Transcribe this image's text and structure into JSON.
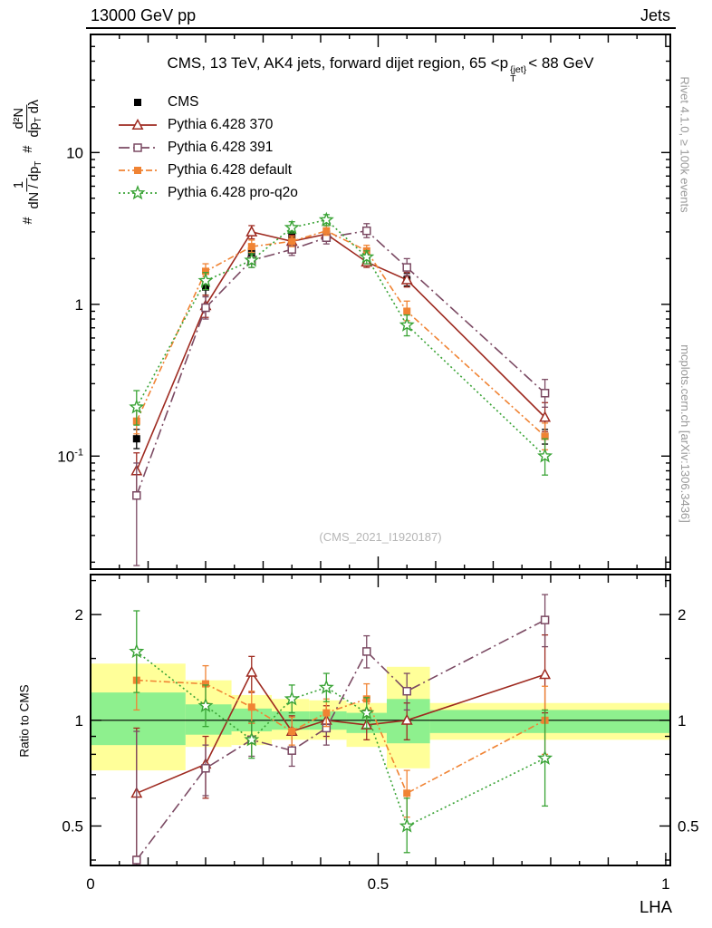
{
  "header": {
    "left": "13000 GeV pp",
    "right": "Jets"
  },
  "title": {
    "part1": "CMS, 13 TeV, AK4 jets, forward dijet region, 65 <p",
    "sup": "{jet}",
    "sub": "T",
    "part2": "< 88 GeV"
  },
  "watermark": "(CMS_2021_I1920187)",
  "side": {
    "right_top": "Rivet 4.1.0, ≥ 100k events",
    "right_bottom": "mcplots.cern.ch [arXiv:1306.3436]"
  },
  "ylabel": {
    "hash1": "#",
    "f1_num": "1",
    "f1_den_main": "dN / dp",
    "f1_den_sub": "T",
    "hash2": "#",
    "f2_num": "d²N",
    "f2_den_a": "dp",
    "f2_den_a_sub": "T",
    "f2_den_b": " dλ"
  },
  "chart_data": {
    "type": "line",
    "xlabel": "LHA",
    "xlim": [
      0,
      1.008
    ],
    "x_ticks": [
      {
        "v": 0,
        "label": "0"
      },
      {
        "v": 0.5,
        "label": "0.5"
      },
      {
        "v": 1,
        "label": "1"
      }
    ],
    "main": {
      "yscale": "log",
      "ylim": [
        0.018,
        60
      ],
      "yticks": [
        {
          "v": 10,
          "base": "10",
          "exp": ""
        },
        {
          "v": 1,
          "base": "1",
          "exp": ""
        },
        {
          "v": 0.1,
          "base": "10",
          "exp": "-1"
        }
      ],
      "series": [
        {
          "name": "cms",
          "label": "CMS",
          "color": "#000000",
          "marker": "square-filled",
          "line": "none",
          "points": [
            [
              0.08,
              0.13,
              0.112,
              0.15
            ],
            [
              0.2,
              1.3,
              1.15,
              1.47
            ],
            [
              0.28,
              2.2,
              2.0,
              2.42
            ],
            [
              0.35,
              2.8,
              2.6,
              3.0
            ],
            [
              0.41,
              2.9,
              2.7,
              3.1
            ],
            [
              0.48,
              1.95,
              1.82,
              2.1
            ],
            [
              0.55,
              1.45,
              1.32,
              1.6
            ],
            [
              0.79,
              0.135,
              0.12,
              0.15
            ]
          ]
        },
        {
          "name": "pythia-370",
          "label": "Pythia 6.428 370",
          "color": "#9e2a20",
          "marker": "triangle-open",
          "line": "solid",
          "points": [
            [
              0.08,
              0.08,
              0.055,
              0.105
            ],
            [
              0.2,
              0.98,
              0.82,
              1.15
            ],
            [
              0.28,
              3.0,
              2.7,
              3.3
            ],
            [
              0.35,
              2.6,
              2.4,
              2.85
            ],
            [
              0.41,
              2.9,
              2.65,
              3.15
            ],
            [
              0.48,
              1.9,
              1.75,
              2.1
            ],
            [
              0.55,
              1.45,
              1.3,
              1.62
            ],
            [
              0.79,
              0.18,
              0.145,
              0.225
            ]
          ]
        },
        {
          "name": "pythia-391",
          "label": "Pythia 6.428 391",
          "color": "#7b4a63",
          "marker": "square-open",
          "line": "dashdot-long",
          "points": [
            [
              0.08,
              0.055,
              0.019,
              0.09
            ],
            [
              0.2,
              0.95,
              0.8,
              1.12
            ],
            [
              0.28,
              1.95,
              1.75,
              2.2
            ],
            [
              0.35,
              2.3,
              2.1,
              2.55
            ],
            [
              0.41,
              2.75,
              2.5,
              3.0
            ],
            [
              0.48,
              3.05,
              2.75,
              3.4
            ],
            [
              0.55,
              1.75,
              1.55,
              2.0
            ],
            [
              0.79,
              0.26,
              0.21,
              0.32
            ]
          ]
        },
        {
          "name": "pythia-default",
          "label": "Pythia 6.428 default",
          "color": "#f08333",
          "marker": "square-filled",
          "line": "dashdot",
          "points": [
            [
              0.08,
              0.17,
              0.14,
              0.2
            ],
            [
              0.2,
              1.65,
              1.45,
              1.85
            ],
            [
              0.28,
              2.4,
              2.2,
              2.65
            ],
            [
              0.35,
              2.6,
              2.4,
              2.8
            ],
            [
              0.41,
              3.05,
              2.85,
              3.3
            ],
            [
              0.48,
              2.25,
              2.05,
              2.45
            ],
            [
              0.55,
              0.9,
              0.78,
              1.05
            ],
            [
              0.79,
              0.135,
              0.11,
              0.165
            ]
          ]
        },
        {
          "name": "pythia-pro-q2o",
          "label": "Pythia 6.428 pro-q2o",
          "color": "#39a335",
          "marker": "star-open",
          "line": "dotted",
          "points": [
            [
              0.08,
              0.21,
              0.16,
              0.27
            ],
            [
              0.2,
              1.43,
              1.25,
              1.62
            ],
            [
              0.28,
              1.95,
              1.75,
              2.15
            ],
            [
              0.35,
              3.2,
              2.95,
              3.5
            ],
            [
              0.41,
              3.6,
              3.3,
              3.9
            ],
            [
              0.48,
              2.05,
              1.85,
              2.25
            ],
            [
              0.55,
              0.73,
              0.62,
              0.85
            ],
            [
              0.79,
              0.1,
              0.075,
              0.13
            ]
          ]
        }
      ]
    },
    "ratio": {
      "ylabel": "Ratio to CMS",
      "yscale": "log",
      "ylim": [
        0.386,
        2.6
      ],
      "yticks": [
        {
          "v": 2,
          "label": "2"
        },
        {
          "v": 1,
          "label": "1"
        },
        {
          "v": 0.5,
          "label": "0.5"
        }
      ],
      "minor_ticks": [
        0.4,
        0.6,
        0.7,
        0.8,
        0.9,
        1.5,
        2.5
      ],
      "bands": {
        "yellow_color": "#ffff99",
        "green_color": "#8ef08e",
        "edges": [
          0,
          0.165,
          0.245,
          0.315,
          0.38,
          0.445,
          0.515,
          0.59,
          1.008
        ],
        "yellow": [
          [
            0.72,
            1.45
          ],
          [
            0.84,
            1.3
          ],
          [
            0.85,
            1.18
          ],
          [
            0.88,
            1.15
          ],
          [
            0.88,
            1.14
          ],
          [
            0.84,
            1.12
          ],
          [
            0.73,
            1.42
          ],
          [
            0.88,
            1.12
          ]
        ],
        "green": [
          [
            0.85,
            1.2
          ],
          [
            0.91,
            1.11
          ],
          [
            0.93,
            1.08
          ],
          [
            0.94,
            1.06
          ],
          [
            0.94,
            1.06
          ],
          [
            0.92,
            1.05
          ],
          [
            0.86,
            1.15
          ],
          [
            0.92,
            1.07
          ]
        ]
      },
      "series": [
        {
          "name": "pythia-370",
          "color": "#9e2a20",
          "marker": "triangle-open",
          "line": "solid",
          "points": [
            [
              0.08,
              0.62,
              0.41,
              0.95
            ],
            [
              0.2,
              0.75,
              0.6,
              0.9
            ],
            [
              0.28,
              1.37,
              1.2,
              1.52
            ],
            [
              0.35,
              0.93,
              0.84,
              1.03
            ],
            [
              0.41,
              1.0,
              0.9,
              1.1
            ],
            [
              0.48,
              0.97,
              0.88,
              1.07
            ],
            [
              0.55,
              1.0,
              0.88,
              1.12
            ],
            [
              0.79,
              1.35,
              1.05,
              1.75
            ]
          ]
        },
        {
          "name": "pythia-391",
          "color": "#7b4a63",
          "marker": "square-open",
          "line": "dashdot-long",
          "points": [
            [
              0.08,
              0.4,
              0.387,
              0.93
            ],
            [
              0.2,
              0.73,
              0.61,
              0.85
            ],
            [
              0.28,
              0.88,
              0.79,
              0.98
            ],
            [
              0.35,
              0.82,
              0.74,
              0.91
            ],
            [
              0.41,
              0.95,
              0.85,
              1.05
            ],
            [
              0.48,
              1.57,
              1.41,
              1.74
            ],
            [
              0.55,
              1.21,
              1.07,
              1.36
            ],
            [
              0.79,
              1.93,
              1.62,
              2.28
            ]
          ]
        },
        {
          "name": "pythia-default",
          "color": "#f08333",
          "marker": "square-filled",
          "line": "dashdot",
          "points": [
            [
              0.08,
              1.3,
              1.07,
              1.57
            ],
            [
              0.2,
              1.27,
              1.12,
              1.43
            ],
            [
              0.28,
              1.09,
              0.98,
              1.21
            ],
            [
              0.35,
              0.93,
              0.85,
              1.02
            ],
            [
              0.41,
              1.05,
              0.96,
              1.15
            ],
            [
              0.48,
              1.15,
              1.04,
              1.27
            ],
            [
              0.55,
              0.62,
              0.53,
              0.72
            ],
            [
              0.79,
              1.0,
              0.8,
              1.25
            ]
          ]
        },
        {
          "name": "pythia-pro-q2o",
          "color": "#39a335",
          "marker": "star-open",
          "line": "dotted",
          "points": [
            [
              0.08,
              1.57,
              1.2,
              2.05
            ],
            [
              0.2,
              1.1,
              0.96,
              1.26
            ],
            [
              0.28,
              0.88,
              0.78,
              0.99
            ],
            [
              0.35,
              1.15,
              1.05,
              1.26
            ],
            [
              0.41,
              1.24,
              1.13,
              1.36
            ],
            [
              0.48,
              1.05,
              0.95,
              1.16
            ],
            [
              0.55,
              0.5,
              0.42,
              0.6
            ],
            [
              0.79,
              0.78,
              0.57,
              1.07
            ]
          ]
        }
      ]
    }
  }
}
